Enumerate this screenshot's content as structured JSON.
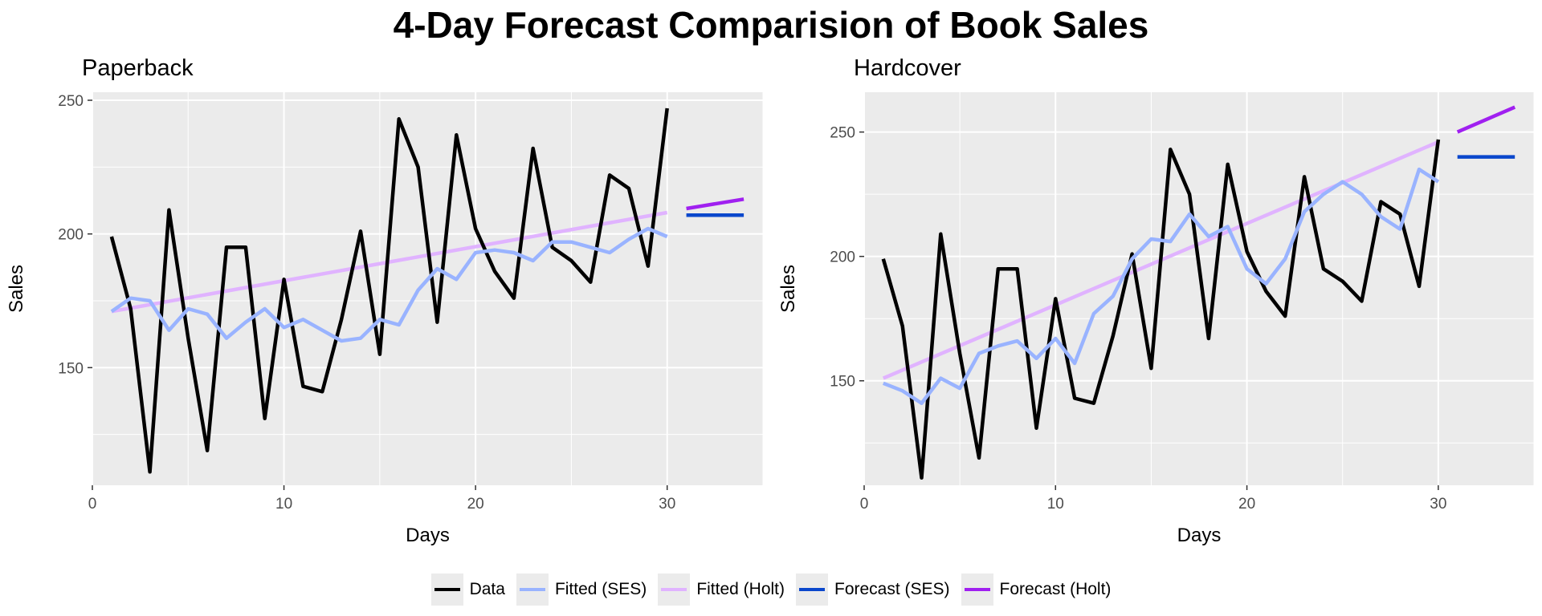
{
  "title": "4-Day Forecast Comparision of Book Sales",
  "colors": {
    "data": "#000000",
    "fitted_ses": "#99b3ff",
    "fitted_holt": "#e0b3ff",
    "forecast_ses": "#0a47cc",
    "forecast_holt": "#a020f0"
  },
  "legend": [
    {
      "key": "data",
      "label": "Data"
    },
    {
      "key": "fitted_ses",
      "label": "Fitted (SES)"
    },
    {
      "key": "fitted_holt",
      "label": "Fitted (Holt)"
    },
    {
      "key": "forecast_ses",
      "label": "Forecast (SES)"
    },
    {
      "key": "forecast_holt",
      "label": "Forecast (Holt)"
    }
  ],
  "chart_data": [
    {
      "type": "line",
      "title": "Paperback",
      "xlabel": "Days",
      "ylabel": "Sales",
      "xlim": [
        0,
        35
      ],
      "ylim": [
        106,
        253
      ],
      "x_ticks": [
        0,
        10,
        20,
        30
      ],
      "y_ticks": [
        150,
        200,
        250
      ],
      "grid": true,
      "legend_position": "bottom",
      "series": [
        {
          "name": "Data",
          "key": "data",
          "x": [
            1,
            2,
            3,
            4,
            5,
            6,
            7,
            8,
            9,
            10,
            11,
            12,
            13,
            14,
            15,
            16,
            17,
            18,
            19,
            20,
            21,
            22,
            23,
            24,
            25,
            26,
            27,
            28,
            29,
            30
          ],
          "y": [
            199,
            172,
            111,
            209,
            161,
            119,
            195,
            195,
            131,
            183,
            143,
            141,
            168,
            201,
            155,
            243,
            225,
            167,
            237,
            202,
            186,
            176,
            232,
            195,
            190,
            182,
            222,
            217,
            188,
            247
          ]
        },
        {
          "name": "Fitted (SES)",
          "key": "fitted_ses",
          "x": [
            1,
            2,
            3,
            4,
            5,
            6,
            7,
            8,
            9,
            10,
            11,
            12,
            13,
            14,
            15,
            16,
            17,
            18,
            19,
            20,
            21,
            22,
            23,
            24,
            25,
            26,
            27,
            28,
            29,
            30
          ],
          "y": [
            171,
            176,
            175,
            164,
            172,
            170,
            161,
            167,
            172,
            165,
            168,
            164,
            160,
            161,
            168,
            166,
            179,
            187,
            183,
            193,
            194,
            193,
            190,
            197,
            197,
            195,
            193,
            198,
            202,
            199
          ]
        },
        {
          "name": "Fitted (Holt)",
          "key": "fitted_holt",
          "x": [
            1,
            30
          ],
          "y": [
            171,
            208
          ]
        },
        {
          "name": "Forecast (SES)",
          "key": "forecast_ses",
          "x": [
            31,
            34
          ],
          "y": [
            207,
            207
          ]
        },
        {
          "name": "Forecast (Holt)",
          "key": "forecast_holt",
          "x": [
            31,
            34
          ],
          "y": [
            209.5,
            213
          ]
        }
      ]
    },
    {
      "type": "line",
      "title": "Hardcover",
      "xlabel": "Days",
      "ylabel": "Sales",
      "xlim": [
        0,
        35
      ],
      "ylim": [
        108,
        266
      ],
      "x_ticks": [
        0,
        10,
        20,
        30
      ],
      "y_ticks": [
        150,
        200,
        250
      ],
      "grid": true,
      "legend_position": "bottom",
      "series": [
        {
          "name": "Data",
          "key": "data",
          "x": [
            1,
            2,
            3,
            4,
            5,
            6,
            7,
            8,
            9,
            10,
            11,
            12,
            13,
            14,
            15,
            16,
            17,
            18,
            19,
            20,
            21,
            22,
            23,
            24,
            25,
            26,
            27,
            28,
            29,
            30
          ],
          "y": [
            199,
            172,
            111,
            209,
            161,
            119,
            195,
            195,
            131,
            183,
            143,
            141,
            168,
            201,
            155,
            243,
            225,
            167,
            237,
            202,
            186,
            176,
            232,
            195,
            190,
            182,
            222,
            217,
            188,
            247
          ]
        },
        {
          "name": "Fitted (SES)",
          "key": "fitted_ses",
          "x": [
            1,
            2,
            3,
            4,
            5,
            6,
            7,
            8,
            9,
            10,
            11,
            12,
            13,
            14,
            15,
            16,
            17,
            18,
            19,
            20,
            21,
            22,
            23,
            24,
            25,
            26,
            27,
            28,
            29,
            30
          ],
          "y": [
            149,
            146,
            141,
            151,
            147,
            161,
            164,
            166,
            159,
            167,
            157,
            177,
            184,
            199,
            207,
            206,
            217,
            208,
            212,
            195,
            189,
            199,
            218,
            225,
            230,
            225,
            216,
            211,
            235,
            230
          ]
        },
        {
          "name": "Fitted (Holt)",
          "key": "fitted_holt",
          "x": [
            1,
            30
          ],
          "y": [
            151,
            246
          ]
        },
        {
          "name": "Forecast (SES)",
          "key": "forecast_ses",
          "x": [
            31,
            34
          ],
          "y": [
            240,
            240
          ]
        },
        {
          "name": "Forecast (Holt)",
          "key": "forecast_holt",
          "x": [
            31,
            34
          ],
          "y": [
            250,
            260
          ]
        }
      ]
    }
  ]
}
